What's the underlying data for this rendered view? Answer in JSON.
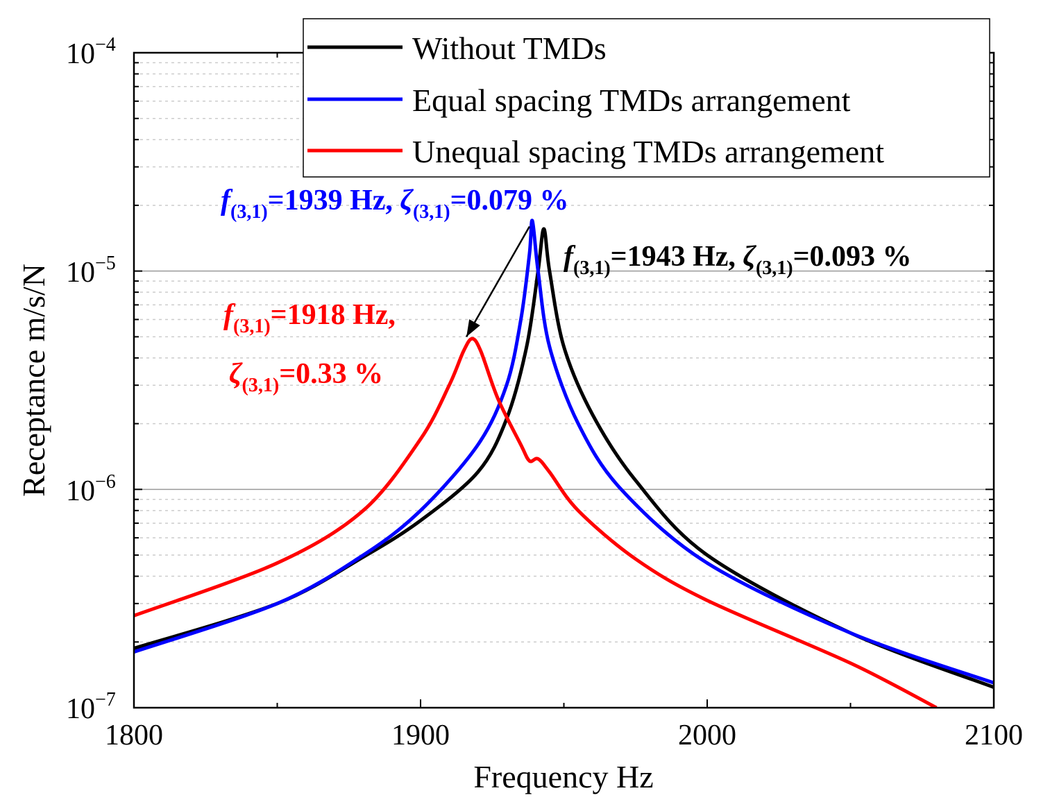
{
  "chart_data": {
    "type": "line",
    "xlabel": "Frequency  Hz",
    "ylabel": "Receptance  m/s/N",
    "xlim": [
      1800,
      2100
    ],
    "ylim": [
      1e-07,
      0.0001
    ],
    "yscale": "log",
    "x_ticks": [
      "1800",
      "1900",
      "2000",
      "2100"
    ],
    "y_ticks": [
      {
        "base": "10",
        "exp": "−4"
      },
      {
        "base": "10",
        "exp": "−5"
      },
      {
        "base": "10",
        "exp": "−6"
      },
      {
        "base": "10",
        "exp": "−7"
      }
    ],
    "grid": true,
    "legend_position": "top-right",
    "series": [
      {
        "name": "Without TMDs",
        "color": "#000000",
        "x": [
          1800,
          1850,
          1880,
          1900,
          1920,
          1930,
          1937,
          1941,
          1943,
          1945,
          1950,
          1960,
          1975,
          2000,
          2050,
          2100
        ],
        "y": [
          1.87e-07,
          3e-07,
          4.9e-07,
          7.2e-07,
          1.2e-06,
          2.1e-06,
          4.5e-06,
          1e-05,
          1.56e-05,
          1e-05,
          4.5e-06,
          2.2e-06,
          1.1e-06,
          5e-07,
          2.2e-07,
          1.24e-07
        ]
      },
      {
        "name": "Equal spacing TMDs arrangement",
        "color": "#0000ff",
        "x": [
          1800,
          1850,
          1880,
          1900,
          1920,
          1930,
          1935,
          1938,
          1939,
          1941,
          1945,
          1955,
          1970,
          2000,
          2050,
          2100
        ],
        "y": [
          1.8e-07,
          3e-07,
          5e-07,
          8e-07,
          1.6e-06,
          3e-06,
          6e-06,
          1.2e-05,
          1.7e-05,
          1e-05,
          4.5e-06,
          2e-06,
          1e-06,
          4.6e-07,
          2.2e-07,
          1.3e-07
        ]
      },
      {
        "name": "Unequal spacing TMDs arrangement",
        "color": "#ff0000",
        "x": [
          1800,
          1850,
          1880,
          1900,
          1910,
          1915,
          1918,
          1921,
          1927,
          1935,
          1938,
          1941,
          1945,
          1955,
          1975,
          2000,
          2050,
          2080
        ],
        "y": [
          2.64e-07,
          4.6e-07,
          8e-07,
          1.7e-06,
          3e-06,
          4.3e-06,
          4.9e-06,
          4.3e-06,
          2.6e-06,
          1.6e-06,
          1.35e-06,
          1.38e-06,
          1.2e-06,
          8e-07,
          4.8e-07,
          3.1e-07,
          1.6e-07,
          1e-07
        ]
      }
    ],
    "annotations": [
      {
        "id": "blue",
        "color": "#0000ff",
        "f_sym": "f",
        "sub": "(3,1)",
        "f_text": "=1939 Hz, ",
        "z_sym": "ζ",
        "z_text": "=0.079 %"
      },
      {
        "id": "black",
        "color": "#000000",
        "f_sym": "f",
        "sub": "(3,1)",
        "f_text": "=1943 Hz, ",
        "z_sym": "ζ",
        "z_text": "=0.093 %"
      },
      {
        "id": "red",
        "color": "#ff0000",
        "f_sym": "f",
        "sub": "(3,1)",
        "f_text": "=1918 Hz,",
        "z_sym": "ζ",
        "z_text": "=0.33 %"
      }
    ],
    "arrow": {
      "from": [
        1938,
        1.6e-05
      ],
      "to": [
        1916,
        5e-06
      ]
    }
  }
}
